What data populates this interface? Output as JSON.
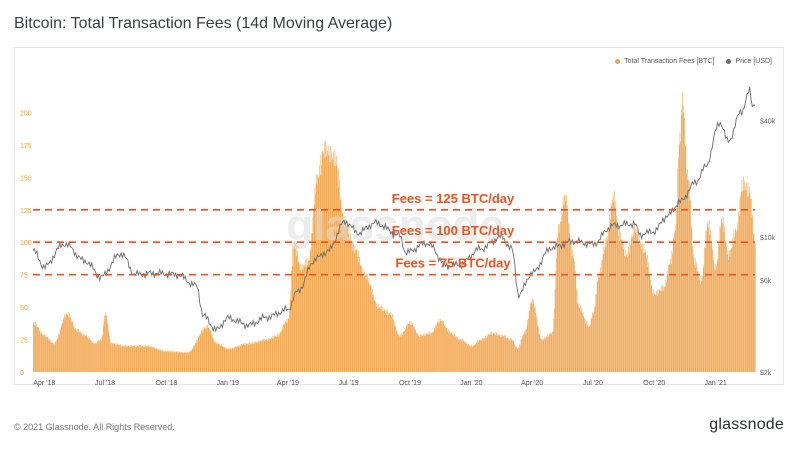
{
  "title": "Bitcoin: Total Transaction Fees (14d Moving Average)",
  "footer": {
    "copyright": "© 2021 Glassnode. All Rights Reserved.",
    "brand": "glassnode"
  },
  "watermark": "glassnode",
  "colors": {
    "fees": "#f2a145",
    "price": "#6b6b6b",
    "annotation": "#f0521e",
    "grid": "#eeeeee"
  },
  "chart_data": {
    "type": "bar",
    "title": "Bitcoin: Total Transaction Fees (14d Moving Average)",
    "legend": {
      "position": "top-right",
      "entries": [
        "Total Transaction Fees [BTC]",
        "Price [USD]"
      ]
    },
    "x": {
      "range": [
        "2018-03-15",
        "2021-03-01"
      ],
      "tick_labels": [
        "Apr '18",
        "Jul '18",
        "Oct '18",
        "Jan '19",
        "Apr '19",
        "Jul '19",
        "Oct '19",
        "Jan '20",
        "Apr '20",
        "Jul '20",
        "Oct '20",
        "Jan '21"
      ],
      "tick_dates": [
        "2018-04-01",
        "2018-07-01",
        "2018-10-01",
        "2019-01-01",
        "2019-04-01",
        "2019-07-01",
        "2019-10-01",
        "2020-01-01",
        "2020-04-01",
        "2020-07-01",
        "2020-10-01",
        "2021-01-01"
      ]
    },
    "y_left": {
      "label": "",
      "ylim": [
        0,
        225
      ],
      "ticks": [
        0,
        25,
        50,
        75,
        100,
        125,
        150,
        175,
        200
      ]
    },
    "y_right": {
      "label": "",
      "scale": "log",
      "ylim": [
        2000,
        65000
      ],
      "ticks": [
        2000,
        6000,
        10000,
        40000
      ],
      "tick_labels": [
        "$2k",
        "$6k",
        "$10k",
        "$40k"
      ]
    },
    "series": [
      {
        "name": "Total Transaction Fees [BTC]",
        "type": "bar",
        "axis": "left",
        "points": [
          [
            "2018-03-15",
            38
          ],
          [
            "2018-04-01",
            28
          ],
          [
            "2018-04-15",
            22
          ],
          [
            "2018-05-05",
            45
          ],
          [
            "2018-05-20",
            32
          ],
          [
            "2018-06-01",
            28
          ],
          [
            "2018-06-15",
            22
          ],
          [
            "2018-06-25",
            25
          ],
          [
            "2018-07-01",
            45
          ],
          [
            "2018-07-10",
            22
          ],
          [
            "2018-08-01",
            20
          ],
          [
            "2018-09-01",
            20
          ],
          [
            "2018-10-01",
            16
          ],
          [
            "2018-11-01",
            15
          ],
          [
            "2018-12-01",
            35
          ],
          [
            "2018-12-15",
            22
          ],
          [
            "2019-01-01",
            18
          ],
          [
            "2019-02-01",
            22
          ],
          [
            "2019-03-01",
            25
          ],
          [
            "2019-03-15",
            28
          ],
          [
            "2019-04-01",
            40
          ],
          [
            "2019-04-10",
            100
          ],
          [
            "2019-04-20",
            80
          ],
          [
            "2019-05-01",
            85
          ],
          [
            "2019-05-15",
            150
          ],
          [
            "2019-05-25",
            172
          ],
          [
            "2019-06-10",
            165
          ],
          [
            "2019-06-25",
            115
          ],
          [
            "2019-07-10",
            95
          ],
          [
            "2019-07-25",
            75
          ],
          [
            "2019-08-15",
            50
          ],
          [
            "2019-09-01",
            45
          ],
          [
            "2019-09-15",
            28
          ],
          [
            "2019-10-01",
            38
          ],
          [
            "2019-10-15",
            28
          ],
          [
            "2019-11-01",
            30
          ],
          [
            "2019-11-15",
            40
          ],
          [
            "2019-12-01",
            30
          ],
          [
            "2019-12-15",
            25
          ],
          [
            "2020-01-01",
            20
          ],
          [
            "2020-01-15",
            25
          ],
          [
            "2020-02-01",
            30
          ],
          [
            "2020-02-15",
            28
          ],
          [
            "2020-03-01",
            25
          ],
          [
            "2020-03-10",
            18
          ],
          [
            "2020-03-20",
            30
          ],
          [
            "2020-04-01",
            55
          ],
          [
            "2020-04-15",
            25
          ],
          [
            "2020-05-01",
            30
          ],
          [
            "2020-05-10",
            110
          ],
          [
            "2020-05-20",
            135
          ],
          [
            "2020-06-01",
            90
          ],
          [
            "2020-06-10",
            50
          ],
          [
            "2020-06-25",
            35
          ],
          [
            "2020-07-01",
            45
          ],
          [
            "2020-07-10",
            75
          ],
          [
            "2020-07-20",
            100
          ],
          [
            "2020-08-01",
            135
          ],
          [
            "2020-08-10",
            105
          ],
          [
            "2020-08-20",
            90
          ],
          [
            "2020-09-01",
            110
          ],
          [
            "2020-09-15",
            95
          ],
          [
            "2020-10-01",
            60
          ],
          [
            "2020-10-15",
            65
          ],
          [
            "2020-10-25",
            85
          ],
          [
            "2020-11-01",
            110
          ],
          [
            "2020-11-08",
            180
          ],
          [
            "2020-11-12",
            210
          ],
          [
            "2020-11-20",
            150
          ],
          [
            "2020-11-30",
            85
          ],
          [
            "2020-12-10",
            70
          ],
          [
            "2020-12-20",
            115
          ],
          [
            "2021-01-01",
            80
          ],
          [
            "2021-01-10",
            118
          ],
          [
            "2021-01-20",
            90
          ],
          [
            "2021-02-01",
            110
          ],
          [
            "2021-02-10",
            145
          ],
          [
            "2021-02-20",
            140
          ],
          [
            "2021-03-01",
            100
          ]
        ]
      },
      {
        "name": "Price [USD]",
        "type": "line",
        "axis": "right",
        "points": [
          [
            "2018-03-15",
            8500
          ],
          [
            "2018-04-01",
            7000
          ],
          [
            "2018-05-01",
            9200
          ],
          [
            "2018-06-01",
            7500
          ],
          [
            "2018-06-25",
            6200
          ],
          [
            "2018-07-25",
            8200
          ],
          [
            "2018-08-15",
            6400
          ],
          [
            "2018-09-15",
            6500
          ],
          [
            "2018-10-15",
            6400
          ],
          [
            "2018-11-15",
            5600
          ],
          [
            "2018-11-25",
            3900
          ],
          [
            "2018-12-15",
            3300
          ],
          [
            "2019-01-01",
            3800
          ],
          [
            "2019-02-01",
            3500
          ],
          [
            "2019-03-01",
            3850
          ],
          [
            "2019-04-01",
            4200
          ],
          [
            "2019-04-15",
            5200
          ],
          [
            "2019-05-15",
            7800
          ],
          [
            "2019-06-01",
            8500
          ],
          [
            "2019-06-26",
            12000
          ],
          [
            "2019-07-15",
            10500
          ],
          [
            "2019-08-10",
            11800
          ],
          [
            "2019-09-15",
            10200
          ],
          [
            "2019-09-25",
            8300
          ],
          [
            "2019-10-26",
            9300
          ],
          [
            "2019-11-25",
            7100
          ],
          [
            "2019-12-15",
            7200
          ],
          [
            "2020-01-15",
            8700
          ],
          [
            "2020-02-15",
            10000
          ],
          [
            "2020-03-01",
            8700
          ],
          [
            "2020-03-12",
            5000
          ],
          [
            "2020-04-01",
            6500
          ],
          [
            "2020-05-01",
            8800
          ],
          [
            "2020-06-01",
            9500
          ],
          [
            "2020-07-01",
            9200
          ],
          [
            "2020-08-01",
            11500
          ],
          [
            "2020-09-01",
            11700
          ],
          [
            "2020-09-10",
            10300
          ],
          [
            "2020-10-01",
            10700
          ],
          [
            "2020-10-21",
            12900
          ],
          [
            "2020-11-10",
            15300
          ],
          [
            "2020-12-01",
            19000
          ],
          [
            "2020-12-17",
            23000
          ],
          [
            "2021-01-08",
            39000
          ],
          [
            "2021-01-20",
            31000
          ],
          [
            "2021-02-08",
            44000
          ],
          [
            "2021-02-21",
            57000
          ],
          [
            "2021-02-25",
            47000
          ],
          [
            "2021-03-01",
            50000
          ]
        ]
      }
    ],
    "annotations": [
      {
        "text": "Fees = 125 BTC/day",
        "y": 125,
        "style": "dashed"
      },
      {
        "text": "Fees = 100 BTC/day",
        "y": 100,
        "style": "dashed"
      },
      {
        "text": "Fees = 75 BTC/day",
        "y": 75,
        "style": "dashed"
      }
    ]
  }
}
